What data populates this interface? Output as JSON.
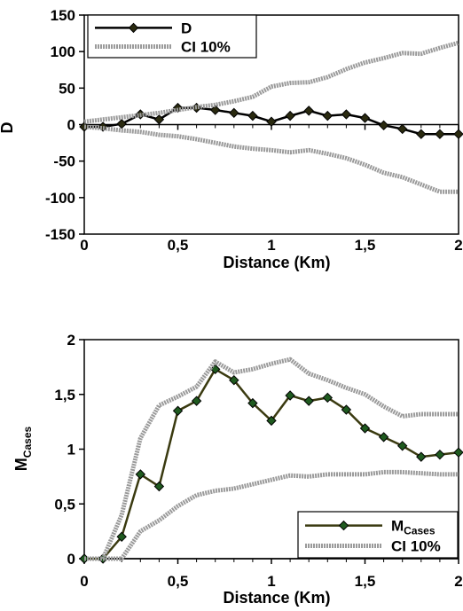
{
  "chart_data": [
    {
      "type": "line",
      "ylabel": "D",
      "xlabel": "Distance (Km)",
      "xlim": [
        0,
        2
      ],
      "ylim": [
        -150,
        150
      ],
      "x_ticks": [
        "0",
        "0,5",
        "1",
        "1,5",
        "2"
      ],
      "y_ticks": [
        "150",
        "100",
        "50",
        "0",
        "-50",
        "-100",
        "-150"
      ],
      "legend_position": "top-left",
      "series": [
        {
          "name": "D",
          "color": "#000000",
          "marker": "diamond",
          "marker_color": "#2a2a10",
          "x": [
            0,
            0.1,
            0.2,
            0.3,
            0.4,
            0.5,
            0.6,
            0.7,
            0.8,
            0.9,
            1.0,
            1.1,
            1.2,
            1.3,
            1.4,
            1.5,
            1.6,
            1.7,
            1.8,
            1.9,
            2.0
          ],
          "y": [
            -3,
            -3,
            1,
            14,
            7,
            23,
            23,
            20,
            16,
            12,
            4,
            12,
            19,
            12,
            14,
            9,
            -1,
            -6,
            -13,
            -13,
            -13
          ]
        },
        {
          "name": "CI 10%",
          "color": "#9a9a9a",
          "band": true,
          "x": [
            0,
            0.1,
            0.2,
            0.3,
            0.4,
            0.5,
            0.6,
            0.7,
            0.8,
            0.9,
            1.0,
            1.1,
            1.2,
            1.3,
            1.4,
            1.5,
            1.6,
            1.7,
            1.8,
            1.9,
            2.0
          ],
          "upper": [
            4,
            7,
            10,
            13,
            16,
            20,
            24,
            27,
            32,
            38,
            52,
            57,
            58,
            65,
            76,
            85,
            91,
            98,
            97,
            105,
            112
          ],
          "lower": [
            -3,
            -5,
            -8,
            -10,
            -14,
            -16,
            -20,
            -25,
            -30,
            -33,
            -35,
            -38,
            -35,
            -40,
            -46,
            -55,
            -66,
            -72,
            -82,
            -92,
            -92
          ]
        }
      ]
    },
    {
      "type": "line",
      "ylabel": "M",
      "ylabel_sub": "Cases",
      "xlabel": "Distance (Km)",
      "xlim": [
        0,
        2
      ],
      "ylim": [
        0,
        2
      ],
      "x_ticks": [
        "0",
        "0,5",
        "1",
        "1,5",
        "2"
      ],
      "y_ticks": [
        "2",
        "1,5",
        "1",
        "0,5",
        "0"
      ],
      "legend_position": "bottom-right",
      "series": [
        {
          "name": "M",
          "name_sub": "Cases",
          "color": "#3a3a10",
          "marker": "diamond",
          "marker_color": "#1f5a1f",
          "x": [
            0,
            0.1,
            0.2,
            0.3,
            0.4,
            0.5,
            0.6,
            0.7,
            0.8,
            0.9,
            1.0,
            1.1,
            1.2,
            1.3,
            1.4,
            1.5,
            1.6,
            1.7,
            1.8,
            1.9,
            2.0
          ],
          "y": [
            0,
            0,
            0.2,
            0.77,
            0.66,
            1.35,
            1.44,
            1.73,
            1.63,
            1.42,
            1.26,
            1.49,
            1.44,
            1.47,
            1.36,
            1.19,
            1.11,
            1.03,
            0.93,
            0.95,
            0.97
          ]
        },
        {
          "name": "CI 10%",
          "color": "#9a9a9a",
          "band": true,
          "x": [
            0,
            0.1,
            0.2,
            0.3,
            0.4,
            0.5,
            0.6,
            0.7,
            0.8,
            0.9,
            1.0,
            1.1,
            1.2,
            1.3,
            1.4,
            1.5,
            1.6,
            1.7,
            1.8,
            1.9,
            2.0
          ],
          "upper": [
            0,
            0,
            0.4,
            1.1,
            1.4,
            1.48,
            1.57,
            1.8,
            1.7,
            1.73,
            1.78,
            1.82,
            1.69,
            1.63,
            1.56,
            1.5,
            1.39,
            1.3,
            1.32,
            1.32,
            1.32
          ],
          "lower": [
            0,
            0,
            0,
            0.25,
            0.35,
            0.48,
            0.58,
            0.62,
            0.64,
            0.68,
            0.72,
            0.76,
            0.75,
            0.77,
            0.77,
            0.77,
            0.79,
            0.79,
            0.78,
            0.77,
            0.77
          ]
        }
      ]
    }
  ]
}
